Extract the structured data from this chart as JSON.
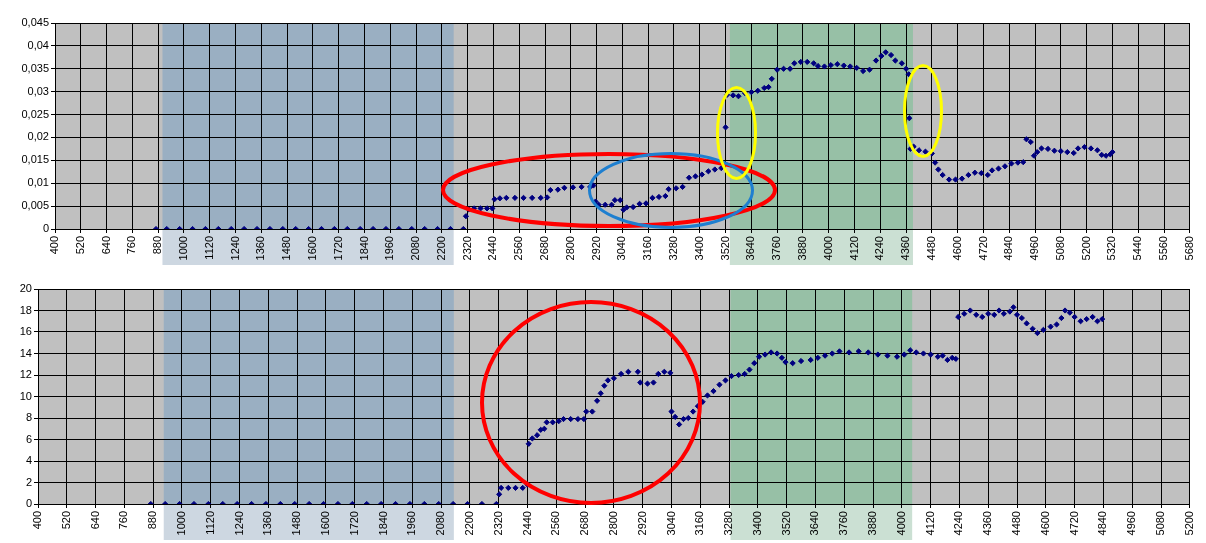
{
  "chart_data": [
    {
      "type": "scatter",
      "marker": "diamond",
      "grid": true,
      "legend": false,
      "xlim": [
        400,
        5680
      ],
      "xticks": [
        400,
        520,
        640,
        760,
        880,
        1000,
        1120,
        1240,
        1360,
        1480,
        1600,
        1720,
        1840,
        1960,
        2080,
        2200,
        2320,
        2440,
        2560,
        2680,
        2800,
        2920,
        3040,
        3160,
        3280,
        3400,
        3520,
        3640,
        3760,
        3880,
        4000,
        4120,
        4240,
        4360,
        4480,
        4600,
        4720,
        4840,
        4960,
        5080,
        5200,
        5320,
        5440,
        5560,
        5680
      ],
      "ylim": [
        0,
        0.045
      ],
      "yticks": [
        0,
        {
          "value": 0.005,
          "label": "0,005"
        },
        {
          "value": 0.01,
          "label": "0,01"
        },
        {
          "value": 0.015,
          "label": "0,015"
        },
        {
          "value": 0.02,
          "label": "0,02"
        },
        {
          "value": 0.025,
          "label": "0,025"
        },
        {
          "value": 0.03,
          "label": "0,03"
        },
        {
          "value": 0.035,
          "label": "0,035"
        },
        {
          "value": 0.04,
          "label": "0,04"
        },
        {
          "value": 0.045,
          "label": "0,045"
        }
      ],
      "bands": [
        {
          "axis": "x",
          "from": 900,
          "to": 2255,
          "color": "#9aafc2"
        },
        {
          "axis": "x",
          "from": 3540,
          "to": 4392,
          "color": "#97c0a6"
        }
      ],
      "series": [
        {
          "color": "#000080",
          "x": [
            870,
            920,
            980,
            1040,
            1100,
            1160,
            1220,
            1280,
            1340,
            1400,
            1460,
            1520,
            1580,
            1640,
            1700,
            1760,
            1820,
            1880,
            1940,
            2000,
            2060,
            2120,
            2180,
            2240,
            2300,
            2312,
            2325,
            2350,
            2380,
            2410,
            2435,
            2445,
            2470,
            2500,
            2540,
            2580,
            2620,
            2660,
            2690,
            2705,
            2740,
            2770,
            2810,
            2850,
            2890,
            2905,
            2915,
            2930,
            2960,
            2990,
            3005,
            3030,
            3045,
            3060,
            3090,
            3120,
            3150,
            3180,
            3210,
            3240,
            3255,
            3290,
            3320,
            3350,
            3380,
            3410,
            3440,
            3470,
            3500,
            3520,
            3527,
            3555,
            3580,
            3610,
            3640,
            3670,
            3700,
            3720,
            3735,
            3760,
            3790,
            3820,
            3840,
            3870,
            3900,
            3930,
            3950,
            3980,
            4010,
            4040,
            4070,
            4100,
            4130,
            4160,
            4190,
            4220,
            4245,
            4265,
            4290,
            4310,
            4340,
            4360,
            4372,
            4375,
            4380,
            4395,
            4420,
            4450,
            4480,
            4495,
            4510,
            4530,
            4560,
            4590,
            4620,
            4650,
            4680,
            4710,
            4740,
            4760,
            4790,
            4820,
            4850,
            4880,
            4905,
            4920,
            4940,
            4955,
            4970,
            4990,
            5020,
            5050,
            5080,
            5110,
            5140,
            5160,
            5190,
            5220,
            5250,
            5270,
            5290,
            5310,
            5320
          ],
          "values": [
            0,
            0,
            0,
            0,
            0,
            0,
            0,
            0,
            0,
            0,
            0,
            0,
            0,
            0,
            0,
            0,
            0,
            0,
            0,
            0,
            0,
            0,
            0,
            0,
            0,
            0.0028,
            0.0043,
            0.0045,
            0.0045,
            0.0045,
            0.0045,
            0.0065,
            0.0067,
            0.0068,
            0.0068,
            0.0068,
            0.0068,
            0.0068,
            0.0069,
            0.0085,
            0.0086,
            0.009,
            0.0091,
            0.0092,
            0.0092,
            0.0095,
            0.006,
            0.0053,
            0.0053,
            0.0053,
            0.0063,
            0.0063,
            0.0042,
            0.0047,
            0.0048,
            0.0055,
            0.0056,
            0.0068,
            0.007,
            0.0072,
            0.0087,
            0.0089,
            0.0092,
            0.0112,
            0.0115,
            0.0119,
            0.0126,
            0.013,
            0.0133,
            0.0222,
            0.0293,
            0.0292,
            0.029,
            0.0297,
            0.0299,
            0.0302,
            0.0308,
            0.031,
            0.0328,
            0.0348,
            0.035,
            0.035,
            0.0362,
            0.0365,
            0.0365,
            0.0362,
            0.0356,
            0.0355,
            0.0358,
            0.036,
            0.0357,
            0.0355,
            0.0352,
            0.0345,
            0.0348,
            0.0368,
            0.0378,
            0.0386,
            0.038,
            0.0368,
            0.0362,
            0.035,
            0.0338,
            0.0242,
            0.0175,
            0.018,
            0.0172,
            0.0169,
            0.0165,
            0.0145,
            0.013,
            0.0118,
            0.0108,
            0.0108,
            0.011,
            0.0118,
            0.0123,
            0.0122,
            0.0118,
            0.0128,
            0.0132,
            0.0137,
            0.0143,
            0.0145,
            0.0146,
            0.0196,
            0.019,
            0.016,
            0.0168,
            0.0176,
            0.0175,
            0.0171,
            0.017,
            0.0168,
            0.0166,
            0.0176,
            0.0179,
            0.0176,
            0.0172,
            0.0162,
            0.016,
            0.0163,
            0.0168
          ]
        }
      ]
    },
    {
      "type": "scatter",
      "marker": "diamond",
      "grid": true,
      "legend": false,
      "xlim": [
        400,
        5200
      ],
      "xticks": [
        400,
        520,
        640,
        760,
        880,
        1000,
        1120,
        1240,
        1360,
        1480,
        1600,
        1720,
        1840,
        1960,
        2080,
        2200,
        2320,
        2440,
        2560,
        2680,
        2800,
        2920,
        3040,
        3160,
        3280,
        3400,
        3520,
        3640,
        3760,
        3880,
        4000,
        4120,
        4240,
        4360,
        4480,
        4600,
        4720,
        4840,
        4960,
        5080,
        5200
      ],
      "ylim": [
        0,
        20
      ],
      "yticks": [
        0,
        2,
        4,
        6,
        8,
        10,
        12,
        14,
        16,
        18,
        20
      ],
      "bands": [
        {
          "axis": "x",
          "from": 924,
          "to": 2133,
          "color": "#9aafc2"
        },
        {
          "axis": "x",
          "from": 3286,
          "to": 4043,
          "color": "#97c0a6"
        }
      ],
      "series": [
        {
          "color": "#000080",
          "x": [
            870,
            930,
            990,
            1050,
            1110,
            1170,
            1230,
            1290,
            1350,
            1410,
            1470,
            1530,
            1590,
            1650,
            1710,
            1770,
            1830,
            1890,
            1950,
            2010,
            2070,
            2130,
            2190,
            2250,
            2310,
            2322,
            2330,
            2360,
            2390,
            2420,
            2440,
            2445,
            2460,
            2480,
            2495,
            2510,
            2520,
            2545,
            2570,
            2590,
            2620,
            2650,
            2675,
            2685,
            2710,
            2730,
            2745,
            2760,
            2775,
            2800,
            2830,
            2860,
            2900,
            2910,
            2940,
            2965,
            2985,
            3010,
            3035,
            3040,
            3055,
            3072,
            3090,
            3110,
            3130,
            3150,
            3170,
            3190,
            3215,
            3240,
            3265,
            3290,
            3320,
            3345,
            3365,
            3385,
            3405,
            3430,
            3455,
            3480,
            3500,
            3515,
            3545,
            3580,
            3620,
            3650,
            3680,
            3710,
            3740,
            3780,
            3820,
            3860,
            3900,
            3940,
            3980,
            4010,
            4035,
            4060,
            4090,
            4120,
            4150,
            4170,
            4190,
            4210,
            4225,
            4235,
            4260,
            4285,
            4310,
            4335,
            4360,
            4385,
            4405,
            4425,
            4450,
            4465,
            4480,
            4500,
            4520,
            4545,
            4565,
            4590,
            4620,
            4645,
            4665,
            4680,
            4700,
            4720,
            4745,
            4770,
            4795,
            4815,
            4835
          ],
          "values": [
            0,
            0,
            0,
            0,
            0,
            0,
            0,
            0,
            0,
            0,
            0,
            0,
            0,
            0,
            0,
            0,
            0,
            0,
            0,
            0,
            0,
            0,
            0,
            0,
            0,
            0.9,
            1.5,
            1.5,
            1.5,
            1.5,
            1.8,
            5.6,
            6.1,
            6.4,
            6.9,
            7.0,
            7.6,
            7.6,
            7.7,
            7.9,
            7.9,
            7.9,
            7.9,
            8.6,
            8.6,
            9.6,
            10.3,
            11.0,
            11.5,
            11.7,
            12.1,
            12.3,
            12.3,
            11.3,
            11.2,
            11.3,
            12.1,
            12.3,
            12.2,
            8.6,
            8.1,
            7.4,
            7.9,
            8.0,
            8.6,
            9.1,
            9.5,
            10.1,
            10.5,
            11.1,
            11.5,
            11.9,
            12.0,
            12.1,
            12.5,
            13.1,
            13.7,
            13.9,
            14.1,
            14.0,
            13.6,
            13.2,
            13.1,
            13.3,
            13.4,
            13.6,
            13.8,
            14.0,
            14.2,
            14.1,
            14.2,
            14.1,
            13.9,
            13.8,
            13.7,
            13.9,
            14.3,
            14.1,
            14.0,
            13.9,
            13.7,
            13.8,
            13.4,
            13.6,
            13.5,
            17.4,
            17.7,
            18.0,
            17.6,
            17.4,
            17.7,
            17.6,
            18.0,
            17.7,
            17.9,
            18.3,
            17.6,
            17.3,
            16.8,
            16.3,
            15.9,
            16.2,
            16.5,
            16.7,
            17.3,
            18.0,
            17.8,
            17.4,
            17.0,
            17.2,
            17.4,
            17.0,
            17.2
          ]
        }
      ]
    }
  ]
}
